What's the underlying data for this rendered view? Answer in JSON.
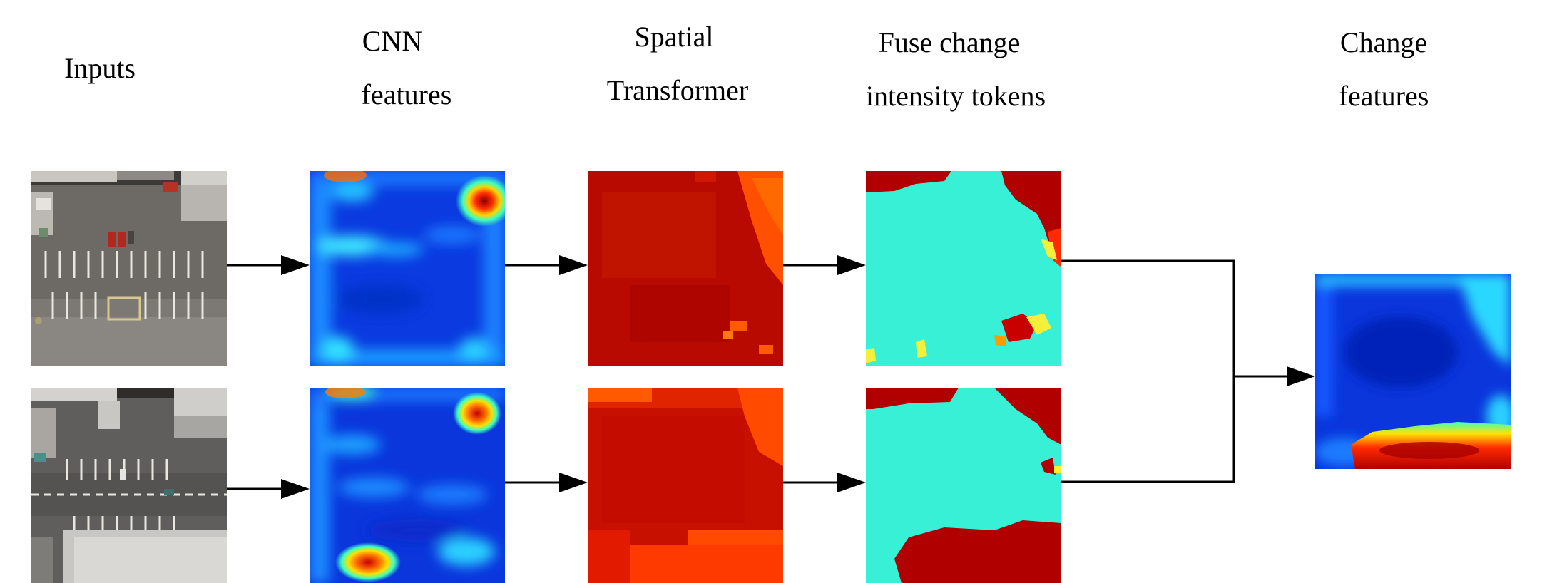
{
  "headers": {
    "inputs": "Inputs",
    "cnn": [
      "CNN",
      "features"
    ],
    "spatial": [
      "Spatial",
      "Transformer"
    ],
    "fuse": [
      "Fuse change",
      "intensity tokens"
    ],
    "change": [
      "Change",
      "features"
    ]
  },
  "colors": {
    "jet_blue": "#0a2cd8",
    "jet_cyan": "#37f0d6",
    "jet_red": "#b00000",
    "jet_orange": "#ff5a00",
    "jet_yellow": "#f4f03a",
    "arrow": "#000000"
  },
  "images": {
    "input_t1": "aerial-photo-parking-lot-time1",
    "input_t2": "aerial-photo-parking-lot-time2",
    "cnn_t1": "cnn-feature-heatmap-time1",
    "cnn_t2": "cnn-feature-heatmap-time2",
    "spatial_t1": "spatial-transformer-heatmap-time1",
    "spatial_t2": "spatial-transformer-heatmap-time2",
    "fuse_t1": "fused-token-heatmap-time1",
    "fuse_t2": "fused-token-heatmap-time2",
    "change": "change-feature-heatmap"
  }
}
